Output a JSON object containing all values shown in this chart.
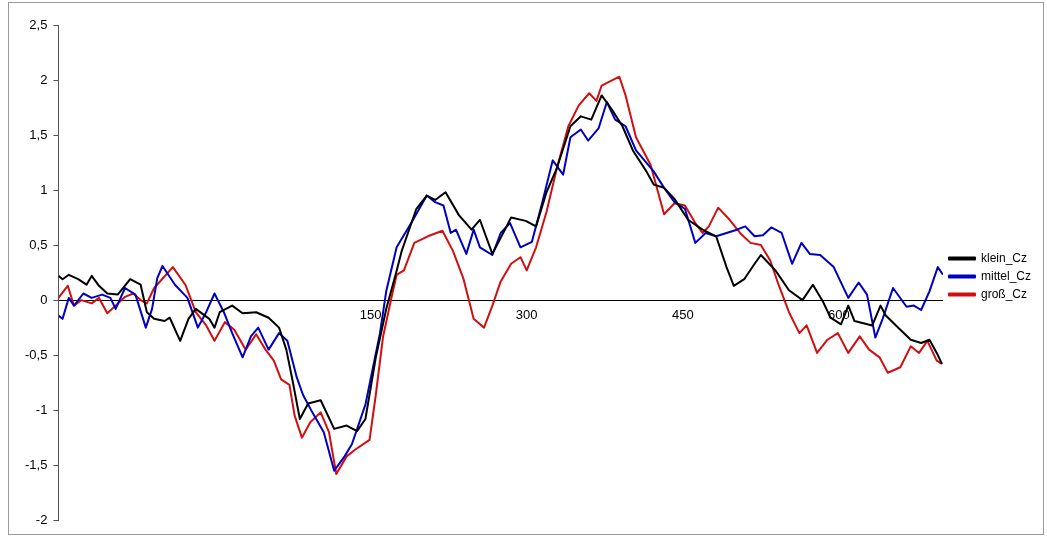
{
  "chart_data": {
    "type": "line",
    "xlim": [
      -150,
      700
    ],
    "xticks": [
      150,
      300,
      450,
      600
    ],
    "ylim": [
      -2,
      2.5
    ],
    "yticks": [
      {
        "value": 2.5,
        "label": "2,5"
      },
      2,
      {
        "value": 1.5,
        "label": "1,5"
      },
      1,
      {
        "value": 0.5,
        "label": "0,5"
      },
      0,
      {
        "value": -0.5,
        "label": "-0,5"
      },
      -1,
      {
        "value": -1.5,
        "label": "-1,5"
      },
      -2
    ],
    "grid": false,
    "legend": "right",
    "marker": "none",
    "line_style": "solid",
    "series": [
      {
        "name": "klein_Cz",
        "color": "#000000",
        "x": [
          -150,
          -146,
          -140,
          -131,
          -123,
          -118,
          -111,
          -103,
          -93,
          -81,
          -71,
          -65,
          -58,
          -48,
          -43,
          -33,
          -25,
          -18,
          -5,
          0,
          5,
          17,
          27,
          40,
          52,
          62,
          69,
          75,
          82,
          90,
          102,
          115,
          127,
          137,
          145,
          155,
          165,
          174,
          180,
          194,
          204,
          212,
          222,
          235,
          247,
          255,
          267,
          279,
          285,
          299,
          309,
          319,
          329,
          342,
          352,
          362,
          372,
          382,
          392,
          402,
          415,
          422,
          432,
          442,
          455,
          469,
          482,
          492,
          499,
          509,
          519,
          525,
          539,
          552,
          565,
          575,
          585,
          592,
          602,
          609,
          615,
          632,
          640,
          645,
          659,
          669,
          679,
          687,
          694,
          699
        ],
        "values": [
          0.22,
          0.19,
          0.23,
          0.19,
          0.14,
          0.22,
          0.13,
          0.06,
          0.05,
          0.19,
          0.14,
          -0.11,
          -0.17,
          -0.19,
          -0.16,
          -0.37,
          -0.17,
          -0.08,
          -0.17,
          -0.25,
          -0.11,
          -0.05,
          -0.12,
          -0.11,
          -0.16,
          -0.25,
          -0.45,
          -0.73,
          -1.08,
          -0.94,
          -0.91,
          -1.17,
          -1.14,
          -1.19,
          -1.08,
          -0.52,
          -0.08,
          0.23,
          0.45,
          0.83,
          0.95,
          0.91,
          0.98,
          0.77,
          0.64,
          0.73,
          0.42,
          0.64,
          0.75,
          0.72,
          0.67,
          0.98,
          1.2,
          1.58,
          1.67,
          1.64,
          1.86,
          1.73,
          1.58,
          1.36,
          1.17,
          1.05,
          1.02,
          0.92,
          0.73,
          0.64,
          0.58,
          0.3,
          0.13,
          0.19,
          0.33,
          0.41,
          0.27,
          0.09,
          0,
          0.14,
          -0.02,
          -0.16,
          -0.22,
          -0.05,
          -0.19,
          -0.23,
          -0.05,
          -0.14,
          -0.27,
          -0.36,
          -0.39,
          -0.36,
          -0.48,
          -0.58
        ]
      },
      {
        "name": "mittel_Cz",
        "color": "#0000c0",
        "x": [
          -150,
          -146,
          -140,
          -135,
          -126,
          -118,
          -108,
          -100,
          -95,
          -86,
          -76,
          -66,
          -60,
          -55,
          -50,
          -38,
          -26,
          -16,
          -8,
          0,
          9,
          17,
          27,
          35,
          42,
          52,
          62,
          70,
          79,
          85,
          94,
          105,
          115,
          125,
          132,
          145,
          159,
          165,
          175,
          189,
          204,
          212,
          220,
          227,
          232,
          242,
          249,
          255,
          267,
          275,
          284,
          294,
          305,
          315,
          325,
          335,
          342,
          352,
          359,
          369,
          377,
          385,
          395,
          405,
          422,
          432,
          442,
          452,
          462,
          472,
          482,
          492,
          502,
          510,
          519,
          527,
          535,
          545,
          555,
          564,
          572,
          582,
          595,
          609,
          619,
          627,
          635,
          642,
          652,
          665,
          672,
          679,
          687,
          695,
          700
        ],
        "values": [
          -0.14,
          -0.17,
          0.02,
          -0.05,
          0.06,
          0.02,
          0.05,
          0.02,
          -0.08,
          0.11,
          0.05,
          -0.25,
          -0.08,
          0.2,
          0.31,
          0.14,
          0.02,
          -0.25,
          -0.11,
          0.06,
          -0.11,
          -0.3,
          -0.52,
          -0.33,
          -0.25,
          -0.45,
          -0.3,
          -0.37,
          -0.7,
          -0.86,
          -1.02,
          -1.2,
          -1.55,
          -1.42,
          -1.31,
          -0.95,
          -0.3,
          0.08,
          0.48,
          0.7,
          0.95,
          0.89,
          0.86,
          0.61,
          0.64,
          0.42,
          0.64,
          0.48,
          0.41,
          0.61,
          0.7,
          0.48,
          0.53,
          0.89,
          1.27,
          1.14,
          1.48,
          1.55,
          1.45,
          1.56,
          1.8,
          1.64,
          1.58,
          1.36,
          1.17,
          1.02,
          0.89,
          0.83,
          0.52,
          0.61,
          0.58,
          0.61,
          0.64,
          0.67,
          0.58,
          0.59,
          0.66,
          0.61,
          0.33,
          0.52,
          0.42,
          0.41,
          0.3,
          0.02,
          0.16,
          0.05,
          -0.34,
          -0.17,
          0.11,
          -0.06,
          -0.05,
          -0.09,
          0.08,
          0.3,
          0.23
        ]
      },
      {
        "name": "groß_Cz",
        "color": "#d01010",
        "x": [
          -150,
          -141,
          -135,
          -128,
          -118,
          -111,
          -103,
          -95,
          -86,
          -78,
          -71,
          -65,
          -58,
          -40,
          -28,
          -18,
          -8,
          0,
          10,
          19,
          30,
          40,
          49,
          57,
          64,
          72,
          77,
          84,
          92,
          102,
          110,
          117,
          127,
          135,
          149,
          155,
          162,
          170,
          175,
          182,
          192,
          205,
          219,
          229,
          239,
          249,
          259,
          267,
          275,
          285,
          294,
          300,
          309,
          319,
          329,
          340,
          350,
          360,
          367,
          372,
          389,
          395,
          405,
          419,
          432,
          442,
          452,
          462,
          469,
          475,
          484,
          495,
          505,
          515,
          525,
          534,
          542,
          552,
          562,
          569,
          579,
          589,
          599,
          609,
          620,
          629,
          639,
          647,
          659,
          669,
          677,
          685,
          694,
          699
        ],
        "values": [
          0.02,
          0.13,
          -0.05,
          0,
          -0.03,
          0.02,
          -0.12,
          -0.05,
          0.03,
          0.06,
          0,
          -0.03,
          0.11,
          0.3,
          0.14,
          -0.11,
          -0.23,
          -0.37,
          -0.2,
          -0.27,
          -0.45,
          -0.31,
          -0.45,
          -0.55,
          -0.72,
          -0.77,
          -1.05,
          -1.25,
          -1.11,
          -1.02,
          -1.2,
          -1.58,
          -1.42,
          -1.36,
          -1.27,
          -0.86,
          -0.33,
          0.02,
          0.23,
          0.27,
          0.52,
          0.58,
          0.63,
          0.45,
          0.2,
          -0.17,
          -0.25,
          -0.05,
          0.17,
          0.33,
          0.39,
          0.27,
          0.48,
          0.8,
          1.2,
          1.58,
          1.77,
          1.88,
          1.81,
          1.95,
          2.03,
          1.86,
          1.48,
          1.23,
          0.78,
          0.88,
          0.86,
          0.7,
          0.61,
          0.67,
          0.84,
          0.73,
          0.61,
          0.52,
          0.5,
          0.36,
          0.14,
          -0.11,
          -0.3,
          -0.23,
          -0.48,
          -0.36,
          -0.3,
          -0.48,
          -0.33,
          -0.45,
          -0.52,
          -0.66,
          -0.61,
          -0.42,
          -0.48,
          -0.37,
          -0.55,
          -0.58
        ]
      }
    ]
  }
}
